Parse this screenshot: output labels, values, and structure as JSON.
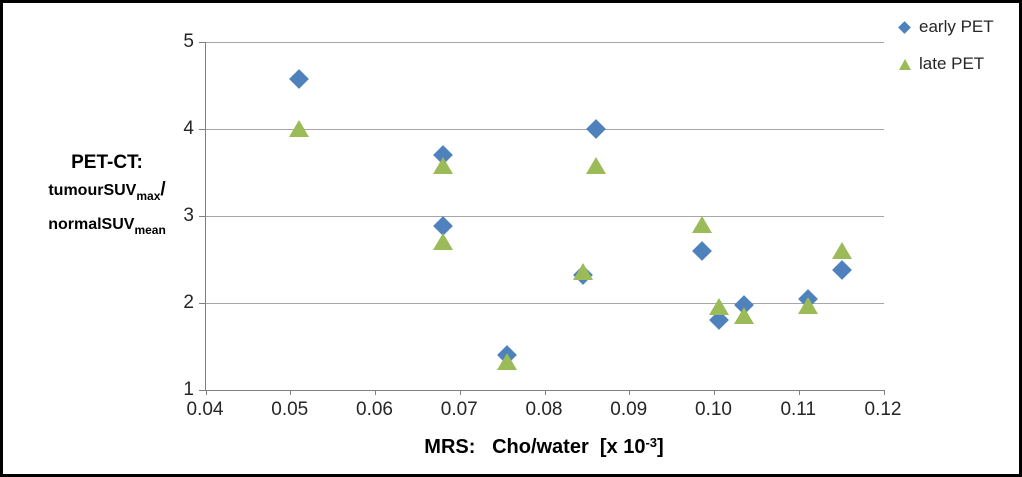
{
  "frame": {
    "background": "#ffffff",
    "border_color": "#000000"
  },
  "colors": {
    "early_pet": "#4F81BD",
    "late_pet": "#9BBB59",
    "gridline": "#A6A6A6",
    "axis_line": "#808080",
    "tick_label": "#262626",
    "axis_title": "#000000",
    "legend_text": "#262626"
  },
  "chart_data": {
    "type": "scatter",
    "title": "",
    "xlabel": "MRS: Cho/water [x 10^-3]",
    "ylabel": "PET-CT: tumourSUV_max / normalSUV_mean",
    "grid": "horizontal",
    "legend_position": "top-right",
    "x_axis": {
      "title_text": "MRS:   Cho/water  [x 10",
      "title_sup": "-3",
      "title_end": "]",
      "min": 0.04,
      "max": 0.12,
      "ticks": [
        {
          "v": 0.04,
          "label": "0.04"
        },
        {
          "v": 0.05,
          "label": "0.05"
        },
        {
          "v": 0.06,
          "label": "0.06"
        },
        {
          "v": 0.07,
          "label": "0.07"
        },
        {
          "v": 0.08,
          "label": "0.08"
        },
        {
          "v": 0.09,
          "label": "0.09"
        },
        {
          "v": 0.1,
          "label": "0.10"
        },
        {
          "v": 0.11,
          "label": "0.11"
        },
        {
          "v": 0.12,
          "label": "0.12"
        }
      ]
    },
    "y_axis": {
      "title_line1": "PET-CT:",
      "title_line2_main": "tumourSUV",
      "title_line2_sub": "max",
      "title_line2_end": "/",
      "title_line3_main": "normalSUV",
      "title_line3_sub": "mean",
      "min": 1,
      "max": 5,
      "ticks": [
        {
          "v": 5,
          "label": "5"
        },
        {
          "v": 4,
          "label": "4"
        },
        {
          "v": 3,
          "label": "3"
        },
        {
          "v": 2,
          "label": "2"
        },
        {
          "v": 1,
          "label": "1"
        }
      ]
    },
    "series": [
      {
        "name": "early PET",
        "marker": "diamond",
        "color": "#4F81BD",
        "points": [
          [
            0.051,
            4.58
          ],
          [
            0.068,
            3.7
          ],
          [
            0.068,
            2.88
          ],
          [
            0.0755,
            1.4
          ],
          [
            0.0845,
            2.32
          ],
          [
            0.086,
            4.0
          ],
          [
            0.0985,
            2.6
          ],
          [
            0.1005,
            1.8
          ],
          [
            0.1035,
            1.98
          ],
          [
            0.111,
            2.05
          ],
          [
            0.115,
            2.38
          ]
        ]
      },
      {
        "name": "late PET",
        "marker": "triangle",
        "color": "#9BBB59",
        "points": [
          [
            0.051,
            4.0
          ],
          [
            0.068,
            3.58
          ],
          [
            0.068,
            2.7
          ],
          [
            0.0755,
            1.32
          ],
          [
            0.0845,
            2.36
          ],
          [
            0.086,
            3.58
          ],
          [
            0.0985,
            2.9
          ],
          [
            0.1005,
            1.95
          ],
          [
            0.1035,
            1.85
          ],
          [
            0.111,
            1.96
          ],
          [
            0.115,
            2.6
          ]
        ]
      }
    ]
  }
}
